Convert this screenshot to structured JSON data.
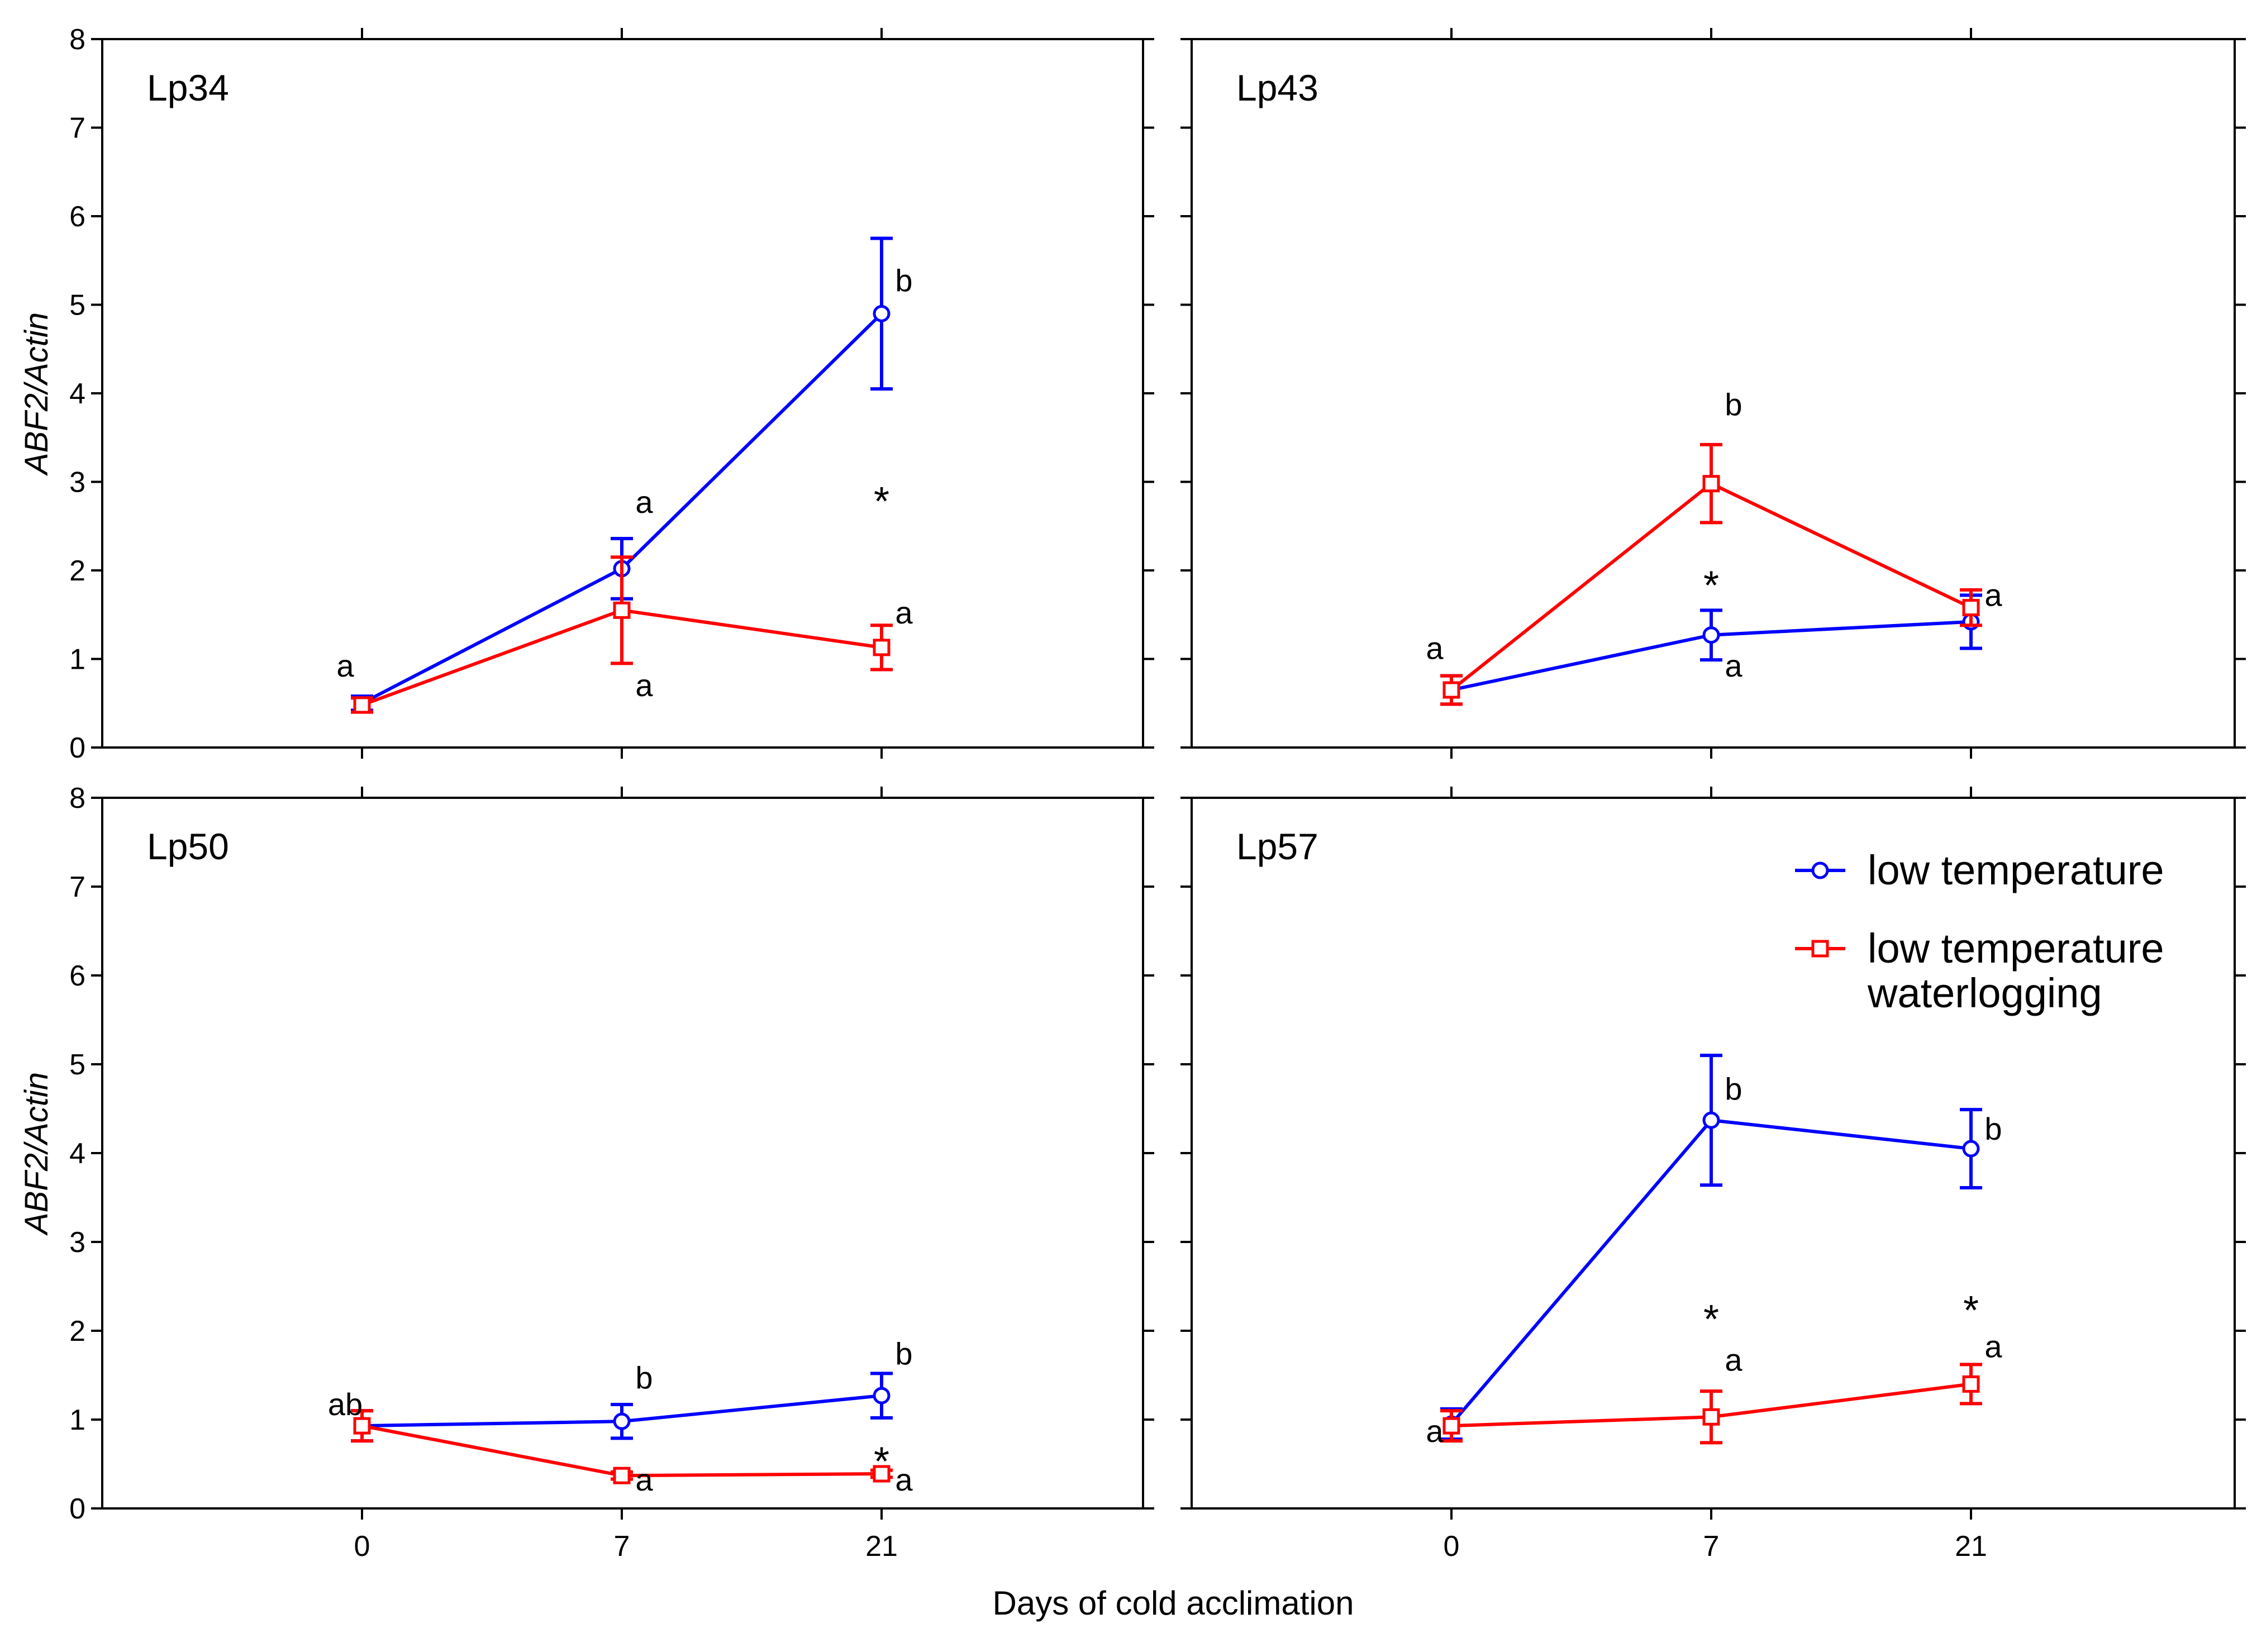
{
  "chart_data": {
    "type": "line",
    "layout": "2x2 panels",
    "xlabel": "Days of cold acclimation",
    "ylabel": "ABF2/Actin",
    "ylim": [
      0,
      8
    ],
    "yticks": [
      "0",
      "1",
      "2",
      "3",
      "4",
      "5",
      "6",
      "7",
      "8"
    ],
    "categories": [
      "0",
      "7",
      "21"
    ],
    "legend": {
      "placement": "top-right of panel Lp57",
      "entries": [
        {
          "key": "lt",
          "lines": [
            "low temperature"
          ],
          "color": "#0000ff",
          "marker": "circle"
        },
        {
          "key": "ltw",
          "lines": [
            "low temperature",
            "waterlogging"
          ],
          "color": "#ff0000",
          "marker": "square"
        }
      ]
    },
    "panels": [
      {
        "name": "Lp34",
        "series": [
          {
            "key": "lt",
            "name": "low temperature",
            "color": "#0000ff",
            "marker": "circle",
            "values": [
              0.5,
              2.02,
              4.9
            ],
            "errors": [
              0.08,
              0.34,
              0.85
            ]
          },
          {
            "key": "ltw",
            "name": "low temperature waterlogging",
            "color": "#ff0000",
            "marker": "square",
            "values": [
              0.48,
              1.55,
              1.13
            ],
            "errors": [
              0.08,
              0.6,
              0.25
            ]
          }
        ],
        "letters": [
          {
            "text": "a",
            "x": 0,
            "y": 0.8
          },
          {
            "text": "a",
            "x": 1,
            "y": 2.65
          },
          {
            "text": "a",
            "x": 1,
            "y": 0.58
          },
          {
            "text": "b",
            "x": 2,
            "y": 5.15
          },
          {
            "text": "a",
            "x": 2,
            "y": 1.4
          }
        ],
        "stars": [
          {
            "x": 2,
            "y": 2.75
          }
        ]
      },
      {
        "name": "Lp43",
        "series": [
          {
            "key": "lt",
            "name": "low temperature",
            "color": "#0000ff",
            "marker": "circle",
            "values": [
              0.65,
              1.27,
              1.42
            ],
            "errors": [
              0.16,
              0.28,
              0.3
            ]
          },
          {
            "key": "ltw",
            "name": "low temperature waterlogging",
            "color": "#ff0000",
            "marker": "square",
            "values": [
              0.65,
              2.98,
              1.58
            ],
            "errors": [
              0.16,
              0.44,
              0.2
            ]
          }
        ],
        "letters": [
          {
            "text": "a",
            "x": 0,
            "y": 1.0
          },
          {
            "text": "b",
            "x": 1,
            "y": 3.75
          },
          {
            "text": "a",
            "x": 1,
            "y": 0.8
          },
          {
            "text": "a",
            "x": 2,
            "y": 1.6
          }
        ],
        "stars": [
          {
            "x": 1,
            "y": 1.8
          }
        ]
      },
      {
        "name": "Lp50",
        "series": [
          {
            "key": "lt",
            "name": "low temperature",
            "color": "#0000ff",
            "marker": "circle",
            "values": [
              0.93,
              0.98,
              1.27
            ],
            "errors": [
              0.17,
              0.19,
              0.25
            ]
          },
          {
            "key": "ltw",
            "name": "low temperature waterlogging",
            "color": "#ff0000",
            "marker": "square",
            "values": [
              0.93,
              0.37,
              0.39
            ],
            "errors": [
              0.17,
              0.04,
              0.04
            ]
          }
        ],
        "letters": [
          {
            "text": "ab",
            "x": 0,
            "y": 1.05
          },
          {
            "text": "b",
            "x": 1,
            "y": 1.35
          },
          {
            "text": "a",
            "x": 1,
            "y": 0.2
          },
          {
            "text": "b",
            "x": 2,
            "y": 1.62
          },
          {
            "text": "a",
            "x": 2,
            "y": 0.2
          }
        ],
        "stars": [
          {
            "x": 2,
            "y": 0.5
          }
        ]
      },
      {
        "name": "Lp57",
        "series": [
          {
            "key": "lt",
            "name": "low temperature",
            "color": "#0000ff",
            "marker": "circle",
            "values": [
              0.95,
              4.37,
              4.05
            ],
            "errors": [
              0.17,
              0.73,
              0.44
            ]
          },
          {
            "key": "ltw",
            "name": "low temperature waterlogging",
            "color": "#ff0000",
            "marker": "square",
            "values": [
              0.93,
              1.03,
              1.4
            ],
            "errors": [
              0.17,
              0.29,
              0.22
            ]
          }
        ],
        "letters": [
          {
            "text": "b",
            "x": 1,
            "y": 4.6
          },
          {
            "text": "b",
            "x": 2,
            "y": 4.15
          },
          {
            "text": "a",
            "x": 1,
            "y": 1.55
          },
          {
            "text": "a",
            "x": 2,
            "y": 1.7
          },
          {
            "text": "a",
            "x": 0,
            "y": 0.75
          }
        ],
        "stars": [
          {
            "x": 1,
            "y": 2.1
          },
          {
            "x": 2,
            "y": 2.2
          }
        ]
      }
    ]
  }
}
